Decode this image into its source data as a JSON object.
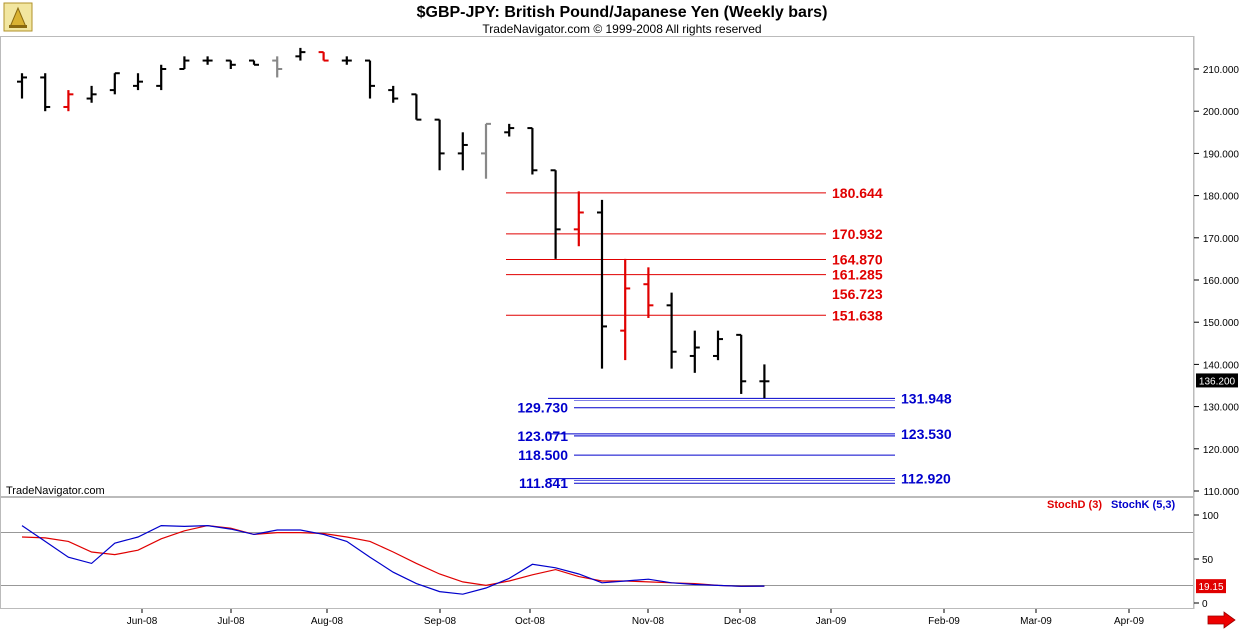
{
  "header": {
    "title": "$GBP-JPY:  British Pound/Japanese Yen  (Weekly bars)",
    "copyright": "TradeNavigator.com © 1999-2008 All rights reserved",
    "watermark": "TradeNavigator.com"
  },
  "colors": {
    "up": "#000000",
    "down": "#e00000",
    "gray": "#888888",
    "level_red": "#e00000",
    "level_blue": "#0000cc",
    "stoch_d": "#e00000",
    "stoch_k": "#0000cc"
  },
  "chart_data": [
    {
      "type": "ohlc",
      "title": "$GBP-JPY:  British Pound/Japanese Yen  (Weekly bars)",
      "y_range": [
        108,
        214
      ],
      "y_ticks": [
        "210.000",
        "200.000",
        "190.000",
        "180.000",
        "170.000",
        "160.000",
        "150.000",
        "140.000",
        "130.000",
        "120.000",
        "110.000"
      ],
      "y_tick_values": [
        210,
        200,
        190,
        180,
        170,
        160,
        150,
        140,
        130,
        120,
        110
      ],
      "last_price": "136.200",
      "last_price_value": 136.2,
      "x_labels": [
        "Jun-08",
        "Jul-08",
        "Aug-08",
        "Sep-08",
        "Oct-08",
        "Nov-08",
        "Dec-08",
        "Jan-09",
        "Feb-09",
        "Mar-09",
        "Apr-09"
      ],
      "bars": [
        {
          "o": 207,
          "h": 209,
          "l": 203,
          "c": 208,
          "color": "up"
        },
        {
          "o": 208,
          "h": 209,
          "l": 200,
          "c": 201,
          "color": "up"
        },
        {
          "o": 201,
          "h": 205,
          "l": 200,
          "c": 204,
          "color": "down"
        },
        {
          "o": 203,
          "h": 206,
          "l": 202,
          "c": 204,
          "color": "up"
        },
        {
          "o": 205,
          "h": 209,
          "l": 204,
          "c": 209,
          "color": "up"
        },
        {
          "o": 206,
          "h": 209,
          "l": 205,
          "c": 207,
          "color": "up"
        },
        {
          "o": 206,
          "h": 211,
          "l": 205,
          "c": 210,
          "color": "up"
        },
        {
          "o": 210,
          "h": 213,
          "l": 210,
          "c": 212,
          "color": "up"
        },
        {
          "o": 212,
          "h": 213,
          "l": 211,
          "c": 212,
          "color": "up"
        },
        {
          "o": 212,
          "h": 212,
          "l": 210,
          "c": 211,
          "color": "up"
        },
        {
          "o": 212,
          "h": 212,
          "l": 211,
          "c": 211,
          "color": "up"
        },
        {
          "o": 212,
          "h": 213,
          "l": 208,
          "c": 210,
          "color": "gray"
        },
        {
          "o": 213,
          "h": 215,
          "l": 212,
          "c": 214,
          "color": "up"
        },
        {
          "o": 214,
          "h": 214,
          "l": 212,
          "c": 212,
          "color": "down"
        },
        {
          "o": 212,
          "h": 213,
          "l": 211,
          "c": 212,
          "color": "up"
        },
        {
          "o": 212,
          "h": 212,
          "l": 203,
          "c": 206,
          "color": "up"
        },
        {
          "o": 205,
          "h": 206,
          "l": 202,
          "c": 203,
          "color": "up"
        },
        {
          "o": 204,
          "h": 204,
          "l": 198,
          "c": 198,
          "color": "up"
        },
        {
          "o": 198,
          "h": 198,
          "l": 186,
          "c": 190,
          "color": "up"
        },
        {
          "o": 190,
          "h": 195,
          "l": 186,
          "c": 192,
          "color": "up"
        },
        {
          "o": 190,
          "h": 197,
          "l": 184,
          "c": 197,
          "color": "gray"
        },
        {
          "o": 195,
          "h": 197,
          "l": 194,
          "c": 196,
          "color": "up"
        },
        {
          "o": 196,
          "h": 196,
          "l": 185,
          "c": 186,
          "color": "up"
        },
        {
          "o": 186,
          "h": 186,
          "l": 165,
          "c": 172,
          "color": "up"
        },
        {
          "o": 172,
          "h": 181,
          "l": 168,
          "c": 176,
          "color": "down"
        },
        {
          "o": 176,
          "h": 179,
          "l": 139,
          "c": 149,
          "color": "up"
        },
        {
          "o": 148,
          "h": 165,
          "l": 141,
          "c": 158,
          "color": "down"
        },
        {
          "o": 159,
          "h": 163,
          "l": 151,
          "c": 154,
          "color": "down"
        },
        {
          "o": 154,
          "h": 157,
          "l": 139,
          "c": 143,
          "color": "up"
        },
        {
          "o": 142,
          "h": 148,
          "l": 138,
          "c": 144,
          "color": "up"
        },
        {
          "o": 142,
          "h": 148,
          "l": 141,
          "c": 146,
          "color": "up"
        },
        {
          "o": 147,
          "h": 147,
          "l": 133,
          "c": 136,
          "color": "up"
        },
        {
          "o": 136,
          "h": 140,
          "l": 132,
          "c": 136,
          "color": "up"
        }
      ],
      "levels_red": [
        {
          "value": 180.644,
          "label": "180.644"
        },
        {
          "value": 170.932,
          "label": "170.932"
        },
        {
          "value": 164.87,
          "label": "164.870"
        },
        {
          "value": 161.285,
          "label": "161.285"
        },
        {
          "value": 151.638,
          "label": "151.638"
        }
      ],
      "red_text_labels": [
        {
          "value": 156.723,
          "label": "156.723"
        }
      ],
      "levels_blue": [
        {
          "value": 131.948,
          "label": "131.948",
          "side": "right"
        },
        {
          "value": 129.73,
          "label": "129.730",
          "side": "left"
        },
        {
          "value": 123.53,
          "label": "123.530",
          "side": "right"
        },
        {
          "value": 123.071,
          "label": "123.071",
          "side": "left"
        },
        {
          "value": 118.5,
          "label": "118.500",
          "side": "left"
        },
        {
          "value": 112.92,
          "label": "112.920",
          "side": "right"
        },
        {
          "value": 111.841,
          "label": "111.841",
          "side": "left"
        }
      ]
    },
    {
      "type": "line",
      "y_range": [
        0,
        100
      ],
      "y_ticks": [
        "100",
        "50",
        "0"
      ],
      "y_tick_values": [
        100,
        50,
        0
      ],
      "ref_lines": [
        80,
        20
      ],
      "last_value": "19.15",
      "last_value_num": 19.15,
      "series": [
        {
          "name": "StochD (3)",
          "color": "stoch_d",
          "values": [
            75,
            74,
            70,
            58,
            55,
            60,
            73,
            82,
            88,
            85,
            78,
            80,
            80,
            79,
            75,
            70,
            58,
            45,
            33,
            24,
            20,
            25,
            32,
            38,
            30,
            25,
            25,
            24,
            23,
            22,
            20,
            19,
            19.15
          ]
        },
        {
          "name": "StochK (5,3)",
          "color": "stoch_k",
          "values": [
            88,
            70,
            52,
            45,
            68,
            75,
            88,
            87,
            88,
            84,
            78,
            83,
            83,
            78,
            70,
            52,
            35,
            22,
            13,
            10,
            17,
            28,
            44,
            40,
            33,
            23,
            25,
            27,
            23,
            21,
            20,
            19,
            19.15
          ]
        }
      ]
    }
  ]
}
